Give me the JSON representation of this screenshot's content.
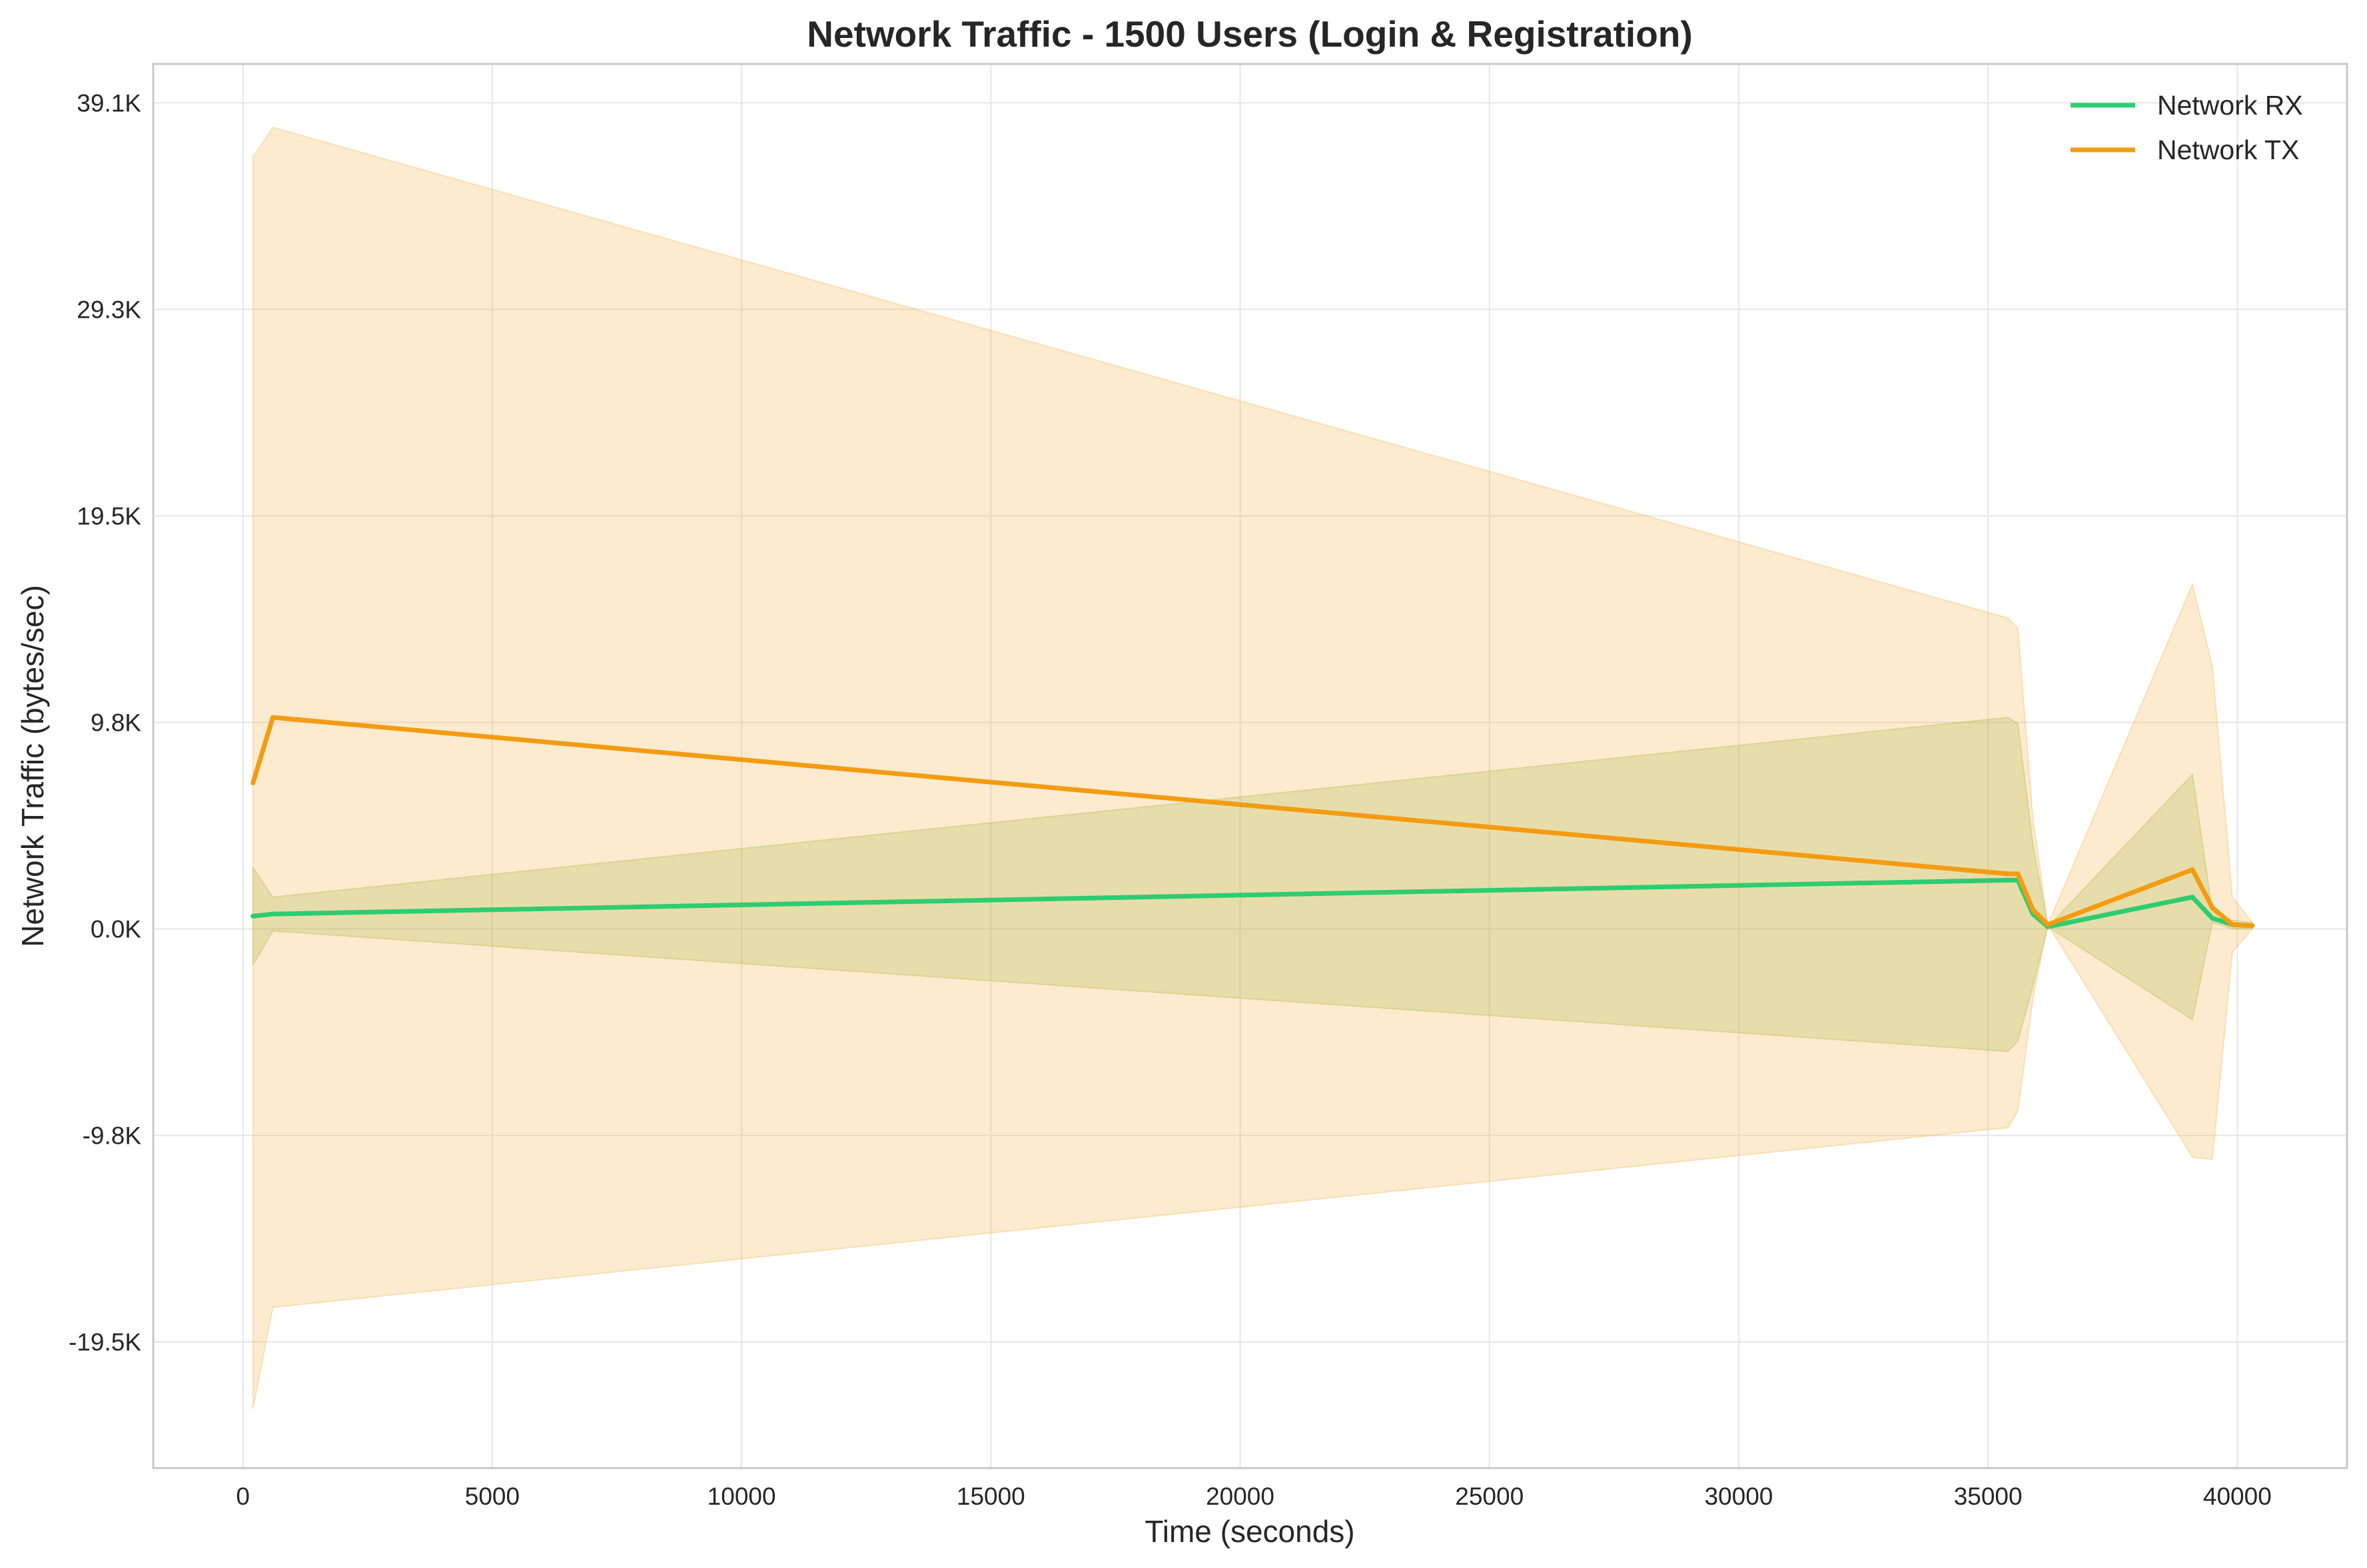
{
  "chart_data": {
    "type": "line",
    "title": "Network Traffic - 1500 Users (Login & Registration)",
    "xlabel": "Time (seconds)",
    "ylabel": "Network Traffic (bytes/sec)",
    "xlim": [
      -1800,
      42200
    ],
    "ylim": [
      -25500,
      40900
    ],
    "x_ticks": [
      0,
      5000,
      10000,
      15000,
      20000,
      25000,
      30000,
      35000,
      40000
    ],
    "x_tick_labels": [
      "0",
      "5000",
      "10000",
      "15000",
      "20000",
      "25000",
      "30000",
      "35000",
      "40000"
    ],
    "y_ticks": [
      -19530,
      -9765,
      0,
      9765,
      19530,
      29295,
      39060
    ],
    "y_tick_labels": [
      "-19.5K",
      "-9.8K",
      "0.0K",
      "9.8K",
      "19.5K",
      "29.3K",
      "39.1K"
    ],
    "grid": true,
    "legend_position": "top-right",
    "series": [
      {
        "name": "Network RX",
        "color": "#2ecc71",
        "band_color": "#8db83a",
        "x": [
          200,
          600,
          35400,
          35600,
          35900,
          36200,
          39100,
          39500,
          39900,
          40300
        ],
        "values": [
          600,
          700,
          2300,
          2300,
          700,
          100,
          1500,
          500,
          200,
          150
        ],
        "band_upper": [
          2900,
          1500,
          10000,
          9700,
          4000,
          100,
          7300,
          800,
          400,
          300
        ],
        "band_lower": [
          -1700,
          -100,
          -5800,
          -5300,
          -2700,
          100,
          -4300,
          300,
          0,
          0
        ]
      },
      {
        "name": "Network TX",
        "color": "#f39c12",
        "band_color": "#f5b041",
        "x": [
          200,
          600,
          35400,
          35600,
          35900,
          36200,
          39100,
          39500,
          39900,
          40300
        ],
        "values": [
          6900,
          10000,
          2600,
          2600,
          900,
          200,
          2800,
          1000,
          200,
          150
        ],
        "band_upper": [
          36500,
          37900,
          14700,
          14200,
          5200,
          200,
          16300,
          12400,
          1500,
          300
        ],
        "band_lower": [
          -22700,
          -17900,
          -9400,
          -8600,
          -3300,
          200,
          -10800,
          -10900,
          -1100,
          0
        ]
      }
    ]
  }
}
